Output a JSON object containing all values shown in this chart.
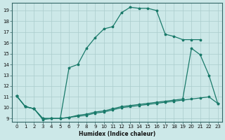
{
  "xlabel": "Humidex (Indice chaleur)",
  "background_color": "#cce8e8",
  "grid_color": "#aacccc",
  "line_color": "#1a7a6a",
  "xlim": [
    -0.5,
    23.5
  ],
  "ylim": [
    8.7,
    19.7
  ],
  "xticks": [
    0,
    1,
    2,
    3,
    4,
    5,
    6,
    7,
    8,
    9,
    10,
    11,
    12,
    13,
    14,
    15,
    16,
    17,
    18,
    19,
    20,
    21,
    22,
    23
  ],
  "yticks": [
    9,
    10,
    11,
    12,
    13,
    14,
    15,
    16,
    17,
    18,
    19
  ],
  "line1_x": [
    0,
    1,
    2,
    3,
    4,
    5,
    6,
    7,
    8,
    9,
    10,
    11,
    12,
    13,
    14,
    15,
    16,
    17,
    18,
    19,
    20,
    21
  ],
  "line1_y": [
    11.1,
    10.1,
    9.9,
    8.9,
    9.0,
    9.0,
    13.7,
    14.0,
    15.5,
    16.5,
    17.3,
    17.5,
    18.8,
    19.3,
    19.2,
    19.2,
    19.0,
    16.8,
    16.6,
    16.3,
    16.3,
    16.3
  ],
  "line2_x": [
    0,
    1,
    2,
    3,
    4,
    5,
    6,
    7,
    8,
    9,
    10,
    11,
    12,
    13,
    14,
    15,
    16,
    17,
    18,
    19,
    20,
    21,
    22,
    23
  ],
  "line2_y": [
    11.1,
    10.1,
    9.9,
    9.0,
    9.0,
    9.0,
    9.1,
    9.3,
    9.4,
    9.6,
    9.7,
    9.9,
    10.1,
    10.2,
    10.3,
    10.4,
    10.5,
    10.6,
    10.7,
    10.8,
    15.5,
    14.9,
    13.0,
    10.4
  ],
  "line3_x": [
    0,
    1,
    2,
    3,
    4,
    5,
    6,
    7,
    8,
    9,
    10,
    11,
    12,
    13,
    14,
    15,
    16,
    17,
    18,
    19,
    20,
    21,
    22,
    23
  ],
  "line3_y": [
    11.1,
    10.1,
    9.9,
    9.0,
    9.0,
    9.0,
    9.1,
    9.2,
    9.3,
    9.5,
    9.6,
    9.8,
    10.0,
    10.1,
    10.2,
    10.3,
    10.4,
    10.5,
    10.6,
    10.7,
    10.8,
    10.9,
    11.0,
    10.4
  ]
}
